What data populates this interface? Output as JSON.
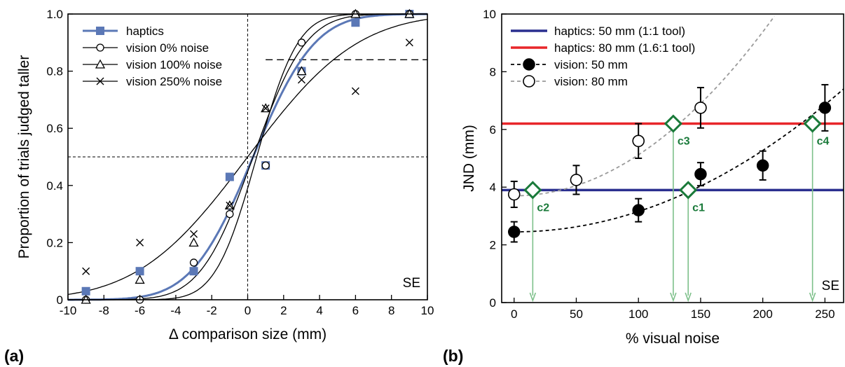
{
  "chart_data": [
    {
      "type": "scatter",
      "panel_label": "(a)",
      "xlabel": "Δ comparison size (mm)",
      "ylabel": "Proportion of trials judged taller",
      "xlim": [
        -10,
        10
      ],
      "ylim": [
        0,
        1
      ],
      "xticks": [
        -10,
        -8,
        -6,
        -4,
        -2,
        0,
        2,
        4,
        6,
        8,
        10
      ],
      "yticks": [
        0,
        0.2,
        0.4,
        0.6,
        0.8,
        1
      ],
      "ytick_labels": [
        "0",
        "0.2",
        "0.4",
        "0.6",
        "0.8",
        "1.0"
      ],
      "legend_position": "top-left",
      "annotation": "SE",
      "reference_lines": {
        "x": 0,
        "y": 0.5,
        "y_short": 0.84
      },
      "series": [
        {
          "name": "haptics",
          "marker": "square",
          "color": "#5b78b6",
          "x": [
            -9,
            -6,
            -3,
            -1,
            1,
            3,
            6,
            9
          ],
          "y": [
            0.03,
            0.1,
            0.1,
            0.43,
            0.47,
            0.8,
            0.97,
            1.0
          ],
          "fit": {
            "pse": 0.3,
            "sigma": 2.7
          }
        },
        {
          "name": "vision 0% noise",
          "marker": "circle",
          "color": "#000000",
          "x": [
            -9,
            -6,
            -3,
            -1,
            1,
            3,
            6,
            9
          ],
          "y": [
            0.0,
            0.0,
            0.13,
            0.3,
            0.47,
            0.9,
            1.0,
            1.0
          ],
          "fit": {
            "pse": 0.5,
            "sigma": 1.8
          }
        },
        {
          "name": "vision 100% noise",
          "marker": "triangle",
          "color": "#000000",
          "x": [
            -9,
            -6,
            -3,
            -1,
            1,
            3,
            6,
            9
          ],
          "y": [
            0.0,
            0.07,
            0.2,
            0.33,
            0.67,
            0.8,
            1.0,
            1.0
          ],
          "fit": {
            "pse": 0.3,
            "sigma": 2.3
          }
        },
        {
          "name": "vision 250% noise",
          "marker": "x",
          "color": "#000000",
          "x": [
            -9,
            -6,
            -3,
            -1,
            1,
            3,
            6,
            9
          ],
          "y": [
            0.1,
            0.2,
            0.23,
            0.33,
            0.67,
            0.77,
            0.73,
            0.9
          ],
          "fit": {
            "pse": 0.0,
            "sigma": 4.8
          }
        }
      ]
    },
    {
      "type": "scatter",
      "panel_label": "(b)",
      "xlabel": "% visual noise",
      "ylabel": "JND (mm)",
      "xlim": [
        -10,
        265
      ],
      "ylim": [
        0,
        10
      ],
      "xticks": [
        0,
        50,
        100,
        150,
        200,
        250
      ],
      "yticks": [
        0,
        2,
        4,
        6,
        8,
        10
      ],
      "legend_position": "top-left",
      "annotation": "SE",
      "series": [
        {
          "name": "haptics: 50 mm (1:1 tool)",
          "kind": "hline",
          "y": 3.9,
          "color": "#2a2f8f"
        },
        {
          "name": "haptics: 80 mm (1.6:1 tool)",
          "kind": "hline",
          "y": 6.2,
          "color": "#e8262a"
        },
        {
          "name": "vision: 50 mm",
          "marker": "filled-circle",
          "color": "#000000",
          "line_color": "#000000",
          "x": [
            0,
            100,
            150,
            200,
            250
          ],
          "y": [
            2.45,
            3.2,
            4.45,
            4.75,
            6.75
          ],
          "err": [
            0.35,
            0.4,
            0.4,
            0.5,
            0.8
          ],
          "fit": {
            "a": 2.45,
            "b": 7.05e-05
          }
        },
        {
          "name": "vision: 80 mm",
          "marker": "open-circle",
          "color": "#000000",
          "line_color": "#9a9a9a",
          "x": [
            0,
            50,
            100,
            150
          ],
          "y": [
            3.75,
            4.25,
            5.6,
            6.75
          ],
          "err": [
            0.45,
            0.5,
            0.6,
            0.7
          ],
          "fit": {
            "a": 3.7,
            "b": 0.000142
          }
        }
      ],
      "criteria": [
        {
          "label": "c1",
          "x": 140,
          "y": 3.9
        },
        {
          "label": "c2",
          "x": 15,
          "y": 3.9
        },
        {
          "label": "c3",
          "x": 128,
          "y": 6.2
        },
        {
          "label": "c4",
          "x": 240,
          "y": 6.2
        }
      ],
      "criteria_color": "#1a7a3a",
      "arrow_color": "#7dc08a"
    }
  ]
}
